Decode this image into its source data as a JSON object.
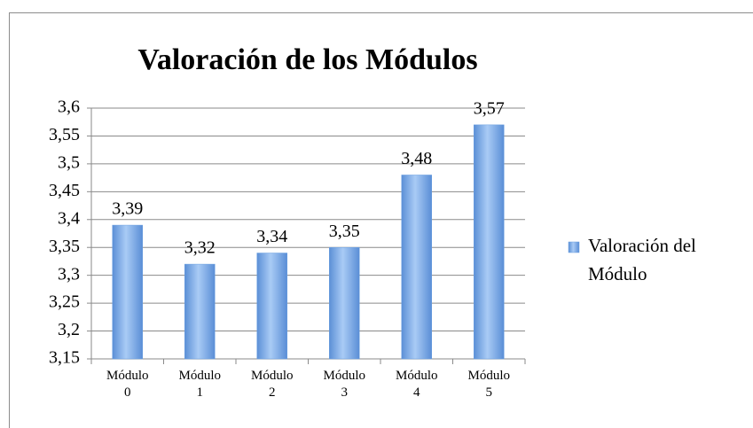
{
  "chart_data": {
    "type": "bar",
    "title": "Valoración de los Módulos",
    "categories": [
      "Módulo 0",
      "Módulo 1",
      "Módulo 2",
      "Módulo 3",
      "Módulo 4",
      "Módulo 5"
    ],
    "series": [
      {
        "name": "Valoración del Módulo",
        "color": "#6a9fe0",
        "values": [
          3.39,
          3.32,
          3.34,
          3.35,
          3.48,
          3.57
        ],
        "value_labels": [
          "3,39",
          "3,32",
          "3,34",
          "3,35",
          "3,48",
          "3,57"
        ]
      }
    ],
    "ylim": [
      3.15,
      3.6
    ],
    "yticks": [
      {
        "value": 3.15,
        "label": "3,15"
      },
      {
        "value": 3.2,
        "label": "3,2"
      },
      {
        "value": 3.25,
        "label": "3,25"
      },
      {
        "value": 3.3,
        "label": "3,3"
      },
      {
        "value": 3.35,
        "label": "3,35"
      },
      {
        "value": 3.4,
        "label": "3,4"
      },
      {
        "value": 3.45,
        "label": "3,45"
      },
      {
        "value": 3.5,
        "label": "3,5"
      },
      {
        "value": 3.55,
        "label": "3,55"
      },
      {
        "value": 3.6,
        "label": "3,6"
      }
    ],
    "grid": true,
    "legend": "right"
  }
}
